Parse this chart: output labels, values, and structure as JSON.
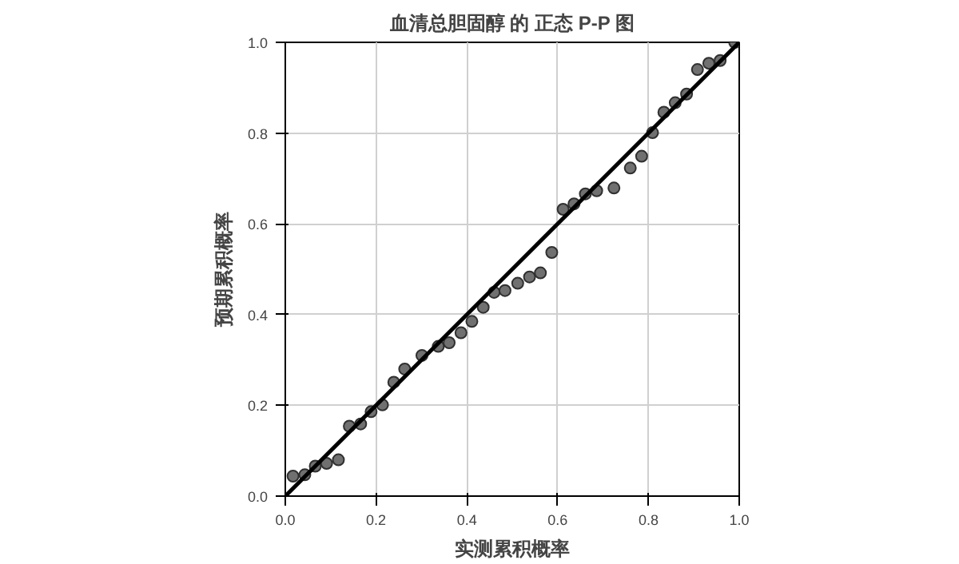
{
  "chart_data": {
    "type": "scatter",
    "title": "血清总胆固醇 的 正态 P-P 图",
    "xlabel": "实测累积概率",
    "ylabel": "预期累积概率",
    "xlim": [
      0,
      1
    ],
    "ylim": [
      0,
      1
    ],
    "xticks": [
      {
        "value": 0,
        "label": "0.0"
      },
      0.2,
      0.4,
      0.6,
      0.8,
      {
        "value": 1,
        "label": "1.0"
      }
    ],
    "yticks": [
      {
        "value": 0,
        "label": "0.0"
      },
      0.2,
      0.4,
      0.6,
      0.8,
      {
        "value": 1,
        "label": "1.0"
      }
    ],
    "grid": true,
    "marker": "circle",
    "series": [
      {
        "color": "#707070",
        "x": [
          0.017,
          0.043,
          0.066,
          0.091,
          0.117,
          0.141,
          0.166,
          0.189,
          0.214,
          0.239,
          0.263,
          0.301,
          0.337,
          0.361,
          0.387,
          0.411,
          0.436,
          0.46,
          0.484,
          0.512,
          0.538,
          0.562,
          0.587,
          0.612,
          0.636,
          0.661,
          0.686,
          0.724,
          0.76,
          0.785,
          0.809,
          0.834,
          0.859,
          0.884,
          0.908,
          0.933,
          0.958,
          0.99
        ],
        "values": [
          0.044,
          0.047,
          0.066,
          0.072,
          0.08,
          0.154,
          0.159,
          0.186,
          0.201,
          0.251,
          0.28,
          0.31,
          0.33,
          0.338,
          0.36,
          0.385,
          0.416,
          0.449,
          0.453,
          0.469,
          0.483,
          0.492,
          0.537,
          0.632,
          0.644,
          0.666,
          0.673,
          0.679,
          0.723,
          0.749,
          0.801,
          0.846,
          0.867,
          0.886,
          0.94,
          0.954,
          0.96,
          1.0
        ]
      },
      {
        "type": "line",
        "color": "#000000",
        "line_style": "solid",
        "marker": "none",
        "x": [
          0,
          1
        ],
        "values": [
          0,
          1
        ]
      }
    ]
  }
}
